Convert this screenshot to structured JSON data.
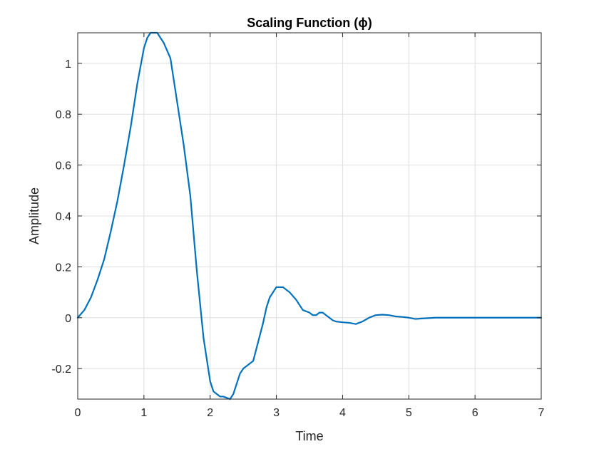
{
  "chart_data": {
    "type": "line",
    "title": "Scaling Function (ϕ)",
    "xlabel": "Time",
    "ylabel": "Amplitude",
    "xlim": [
      0,
      7
    ],
    "ylim": [
      -0.32,
      1.12
    ],
    "xticks": [
      "0",
      "1",
      "2",
      "3",
      "4",
      "5",
      "6",
      "7"
    ],
    "yticks": [
      "-0.2",
      "0",
      "0.2",
      "0.4",
      "0.6",
      "0.8",
      "1"
    ],
    "grid": true,
    "line_color": "#0072BD",
    "series": [
      {
        "x": [
          0,
          0.1,
          0.2,
          0.3,
          0.4,
          0.5,
          0.6,
          0.7,
          0.8,
          0.9,
          1.0,
          1.05,
          1.1,
          1.15,
          1.2,
          1.25,
          1.3,
          1.4,
          1.5,
          1.6,
          1.7,
          1.8,
          1.9,
          2.0,
          2.05,
          2.1,
          2.15,
          2.2,
          2.3,
          2.35,
          2.4,
          2.45,
          2.5,
          2.55,
          2.6,
          2.65,
          2.7,
          2.8,
          2.85,
          2.9,
          2.95,
          3.0,
          3.05,
          3.1,
          3.2,
          3.3,
          3.4,
          3.5,
          3.55,
          3.6,
          3.65,
          3.7,
          3.75,
          3.8,
          3.85,
          3.9,
          4.0,
          4.1,
          4.2,
          4.3,
          4.4,
          4.5,
          4.6,
          4.7,
          4.8,
          4.9,
          5.0,
          5.1,
          5.2,
          5.4,
          5.6,
          5.8,
          6.0,
          6.5,
          7.0
        ],
        "y": [
          0,
          0.03,
          0.08,
          0.15,
          0.23,
          0.34,
          0.46,
          0.6,
          0.75,
          0.92,
          1.06,
          1.1,
          1.12,
          1.12,
          1.12,
          1.1,
          1.08,
          1.02,
          0.85,
          0.68,
          0.48,
          0.18,
          -0.08,
          -0.25,
          -0.29,
          -0.3,
          -0.31,
          -0.31,
          -0.32,
          -0.3,
          -0.26,
          -0.22,
          -0.2,
          -0.19,
          -0.18,
          -0.17,
          -0.12,
          -0.02,
          0.04,
          0.08,
          0.1,
          0.12,
          0.12,
          0.12,
          0.1,
          0.07,
          0.03,
          0.02,
          0.01,
          0.01,
          0.02,
          0.02,
          0.01,
          0.0,
          -0.01,
          -0.015,
          -0.018,
          -0.02,
          -0.025,
          -0.015,
          0.0,
          0.01,
          0.012,
          0.01,
          0.005,
          0.003,
          0.0,
          -0.005,
          -0.003,
          0.0,
          0.0,
          0.0,
          0.0,
          0.0,
          0.0
        ]
      }
    ]
  }
}
